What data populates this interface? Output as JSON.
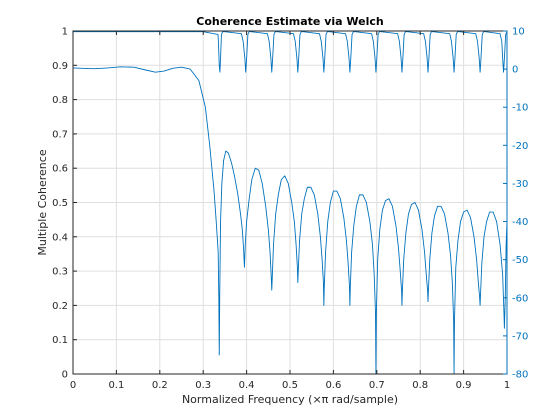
{
  "chart_data": {
    "type": "line",
    "title": "Coherence Estimate via Welch",
    "xlabel": "Normalized Frequency  (×π rad/sample)",
    "ylabel_left": "Multiple Coherence",
    "ylabel_right": "",
    "xlim": [
      0,
      1
    ],
    "ylim_left": [
      0,
      1
    ],
    "ylim_right": [
      -80,
      10
    ],
    "x_ticks": [
      "0",
      "0.1",
      "0.2",
      "0.3",
      "0.4",
      "0.5",
      "0.6",
      "0.7",
      "0.8",
      "0.9",
      "1"
    ],
    "y_ticks_left": [
      "0",
      "0.1",
      "0.2",
      "0.3",
      "0.4",
      "0.5",
      "0.6",
      "0.7",
      "0.8",
      "0.9",
      "1"
    ],
    "y_ticks_right": [
      "-80",
      "-70",
      "-60",
      "-50",
      "-40",
      "-30",
      "-20",
      "-10",
      "0",
      "10"
    ],
    "grid": true,
    "series": [
      {
        "axis": "left",
        "points": [
          [
            0,
            0.998
          ],
          [
            0.3,
            0.998
          ],
          [
            0.334,
            0.99
          ],
          [
            0.335,
            0.97
          ],
          [
            0.337,
            0.9
          ],
          [
            0.3385,
            0.88
          ],
          [
            0.34,
            0.92
          ],
          [
            0.342,
            0.99
          ],
          [
            0.345,
            0.998
          ],
          [
            0.35,
            0.998
          ],
          [
            0.388,
            0.992
          ],
          [
            0.392,
            0.97
          ],
          [
            0.396,
            0.92
          ],
          [
            0.398,
            0.88
          ],
          [
            0.4,
            0.92
          ],
          [
            0.403,
            0.99
          ],
          [
            0.406,
            0.998
          ],
          [
            0.41,
            0.998
          ],
          [
            0.448,
            0.992
          ],
          [
            0.452,
            0.97
          ],
          [
            0.456,
            0.92
          ],
          [
            0.458,
            0.88
          ],
          [
            0.46,
            0.92
          ],
          [
            0.463,
            0.99
          ],
          [
            0.466,
            0.998
          ],
          [
            0.47,
            0.998
          ],
          [
            0.508,
            0.992
          ],
          [
            0.512,
            0.97
          ],
          [
            0.516,
            0.92
          ],
          [
            0.518,
            0.88
          ],
          [
            0.52,
            0.92
          ],
          [
            0.523,
            0.99
          ],
          [
            0.526,
            0.998
          ],
          [
            0.53,
            0.998
          ],
          [
            0.568,
            0.992
          ],
          [
            0.572,
            0.97
          ],
          [
            0.576,
            0.92
          ],
          [
            0.578,
            0.88
          ],
          [
            0.58,
            0.92
          ],
          [
            0.583,
            0.99
          ],
          [
            0.586,
            0.998
          ],
          [
            0.59,
            0.998
          ],
          [
            0.628,
            0.992
          ],
          [
            0.632,
            0.97
          ],
          [
            0.636,
            0.92
          ],
          [
            0.638,
            0.88
          ],
          [
            0.64,
            0.92
          ],
          [
            0.643,
            0.99
          ],
          [
            0.646,
            0.998
          ],
          [
            0.65,
            0.998
          ],
          [
            0.688,
            0.992
          ],
          [
            0.692,
            0.97
          ],
          [
            0.696,
            0.92
          ],
          [
            0.698,
            0.88
          ],
          [
            0.7,
            0.92
          ],
          [
            0.703,
            0.99
          ],
          [
            0.706,
            0.998
          ],
          [
            0.71,
            0.998
          ],
          [
            0.748,
            0.992
          ],
          [
            0.752,
            0.97
          ],
          [
            0.756,
            0.92
          ],
          [
            0.758,
            0.88
          ],
          [
            0.76,
            0.92
          ],
          [
            0.763,
            0.99
          ],
          [
            0.766,
            0.998
          ],
          [
            0.77,
            0.998
          ],
          [
            0.808,
            0.992
          ],
          [
            0.812,
            0.97
          ],
          [
            0.816,
            0.92
          ],
          [
            0.818,
            0.88
          ],
          [
            0.82,
            0.92
          ],
          [
            0.823,
            0.99
          ],
          [
            0.826,
            0.998
          ],
          [
            0.83,
            0.998
          ],
          [
            0.868,
            0.992
          ],
          [
            0.872,
            0.97
          ],
          [
            0.876,
            0.92
          ],
          [
            0.878,
            0.88
          ],
          [
            0.88,
            0.92
          ],
          [
            0.883,
            0.99
          ],
          [
            0.886,
            0.998
          ],
          [
            0.89,
            0.998
          ],
          [
            0.928,
            0.992
          ],
          [
            0.932,
            0.97
          ],
          [
            0.936,
            0.92
          ],
          [
            0.938,
            0.88
          ],
          [
            0.94,
            0.92
          ],
          [
            0.943,
            0.99
          ],
          [
            0.946,
            0.998
          ],
          [
            0.95,
            0.998
          ],
          [
            0.984,
            0.992
          ],
          [
            0.988,
            0.97
          ],
          [
            0.99,
            0.92
          ],
          [
            0.992,
            0.88
          ],
          [
            0.994,
            0.92
          ],
          [
            0.997,
            0.99
          ],
          [
            1,
            0.998
          ]
        ]
      },
      {
        "axis": "right",
        "points": [
          [
            0,
            0.3
          ],
          [
            0.02,
            0.2
          ],
          [
            0.05,
            0.1
          ],
          [
            0.08,
            0.3
          ],
          [
            0.11,
            0.6
          ],
          [
            0.14,
            0.5
          ],
          [
            0.17,
            -0.3
          ],
          [
            0.19,
            -0.8
          ],
          [
            0.21,
            -0.5
          ],
          [
            0.23,
            0.2
          ],
          [
            0.25,
            0.5
          ],
          [
            0.27,
            0.0
          ],
          [
            0.29,
            -3
          ],
          [
            0.305,
            -10
          ],
          [
            0.315,
            -20
          ],
          [
            0.325,
            -32
          ],
          [
            0.33,
            -40
          ],
          [
            0.3345,
            -48
          ],
          [
            0.336,
            -60
          ],
          [
            0.337,
            -75
          ],
          [
            0.338,
            -60
          ],
          [
            0.34,
            -40
          ],
          [
            0.343,
            -30
          ],
          [
            0.347,
            -24
          ],
          [
            0.352,
            -21.5
          ],
          [
            0.358,
            -22
          ],
          [
            0.365,
            -24.5
          ],
          [
            0.372,
            -28
          ],
          [
            0.38,
            -33
          ],
          [
            0.386,
            -38
          ],
          [
            0.39,
            -42
          ],
          [
            0.393,
            -47
          ],
          [
            0.395,
            -52
          ],
          [
            0.397,
            -46
          ],
          [
            0.4,
            -40
          ],
          [
            0.406,
            -34
          ],
          [
            0.412,
            -29
          ],
          [
            0.42,
            -26
          ],
          [
            0.428,
            -26.5
          ],
          [
            0.436,
            -30
          ],
          [
            0.444,
            -36
          ],
          [
            0.45,
            -42
          ],
          [
            0.454,
            -48
          ],
          [
            0.457,
            -55
          ],
          [
            0.458,
            -58
          ],
          [
            0.459,
            -55
          ],
          [
            0.462,
            -46
          ],
          [
            0.467,
            -38
          ],
          [
            0.473,
            -33
          ],
          [
            0.48,
            -29
          ],
          [
            0.488,
            -28
          ],
          [
            0.496,
            -30
          ],
          [
            0.504,
            -35
          ],
          [
            0.51,
            -40
          ],
          [
            0.514,
            -46
          ],
          [
            0.517,
            -52
          ],
          [
            0.518,
            -56
          ],
          [
            0.519,
            -53
          ],
          [
            0.522,
            -45
          ],
          [
            0.527,
            -38
          ],
          [
            0.533,
            -34
          ],
          [
            0.54,
            -31
          ],
          [
            0.548,
            -31
          ],
          [
            0.556,
            -33
          ],
          [
            0.564,
            -38
          ],
          [
            0.57,
            -44
          ],
          [
            0.574,
            -50
          ],
          [
            0.577,
            -56
          ],
          [
            0.578,
            -62
          ],
          [
            0.579,
            -57
          ],
          [
            0.582,
            -48
          ],
          [
            0.587,
            -40
          ],
          [
            0.593,
            -35
          ],
          [
            0.6,
            -32
          ],
          [
            0.608,
            -32
          ],
          [
            0.616,
            -34
          ],
          [
            0.624,
            -39
          ],
          [
            0.63,
            -45
          ],
          [
            0.634,
            -51
          ],
          [
            0.637,
            -57
          ],
          [
            0.638,
            -62
          ],
          [
            0.639,
            -57
          ],
          [
            0.642,
            -48
          ],
          [
            0.647,
            -41
          ],
          [
            0.653,
            -36
          ],
          [
            0.66,
            -33
          ],
          [
            0.668,
            -33
          ],
          [
            0.676,
            -35
          ],
          [
            0.684,
            -40
          ],
          [
            0.69,
            -46
          ],
          [
            0.694,
            -54
          ],
          [
            0.697,
            -64
          ],
          [
            0.698,
            -80
          ],
          [
            0.699,
            -64
          ],
          [
            0.702,
            -50
          ],
          [
            0.707,
            -42
          ],
          [
            0.713,
            -37
          ],
          [
            0.72,
            -34.5
          ],
          [
            0.728,
            -34
          ],
          [
            0.736,
            -36
          ],
          [
            0.744,
            -41
          ],
          [
            0.75,
            -47
          ],
          [
            0.754,
            -53
          ],
          [
            0.757,
            -58
          ],
          [
            0.758,
            -62
          ],
          [
            0.759,
            -58
          ],
          [
            0.762,
            -50
          ],
          [
            0.767,
            -43
          ],
          [
            0.773,
            -38
          ],
          [
            0.78,
            -35.5
          ],
          [
            0.788,
            -35
          ],
          [
            0.796,
            -37
          ],
          [
            0.804,
            -42
          ],
          [
            0.81,
            -48
          ],
          [
            0.814,
            -54
          ],
          [
            0.817,
            -58
          ],
          [
            0.818,
            -61
          ],
          [
            0.819,
            -58
          ],
          [
            0.822,
            -50
          ],
          [
            0.827,
            -43
          ],
          [
            0.833,
            -38.5
          ],
          [
            0.84,
            -36
          ],
          [
            0.848,
            -36
          ],
          [
            0.856,
            -38
          ],
          [
            0.864,
            -43
          ],
          [
            0.87,
            -49
          ],
          [
            0.874,
            -56
          ],
          [
            0.877,
            -66
          ],
          [
            0.878,
            -80
          ],
          [
            0.879,
            -66
          ],
          [
            0.882,
            -52
          ],
          [
            0.887,
            -45
          ],
          [
            0.893,
            -40
          ],
          [
            0.9,
            -37.5
          ],
          [
            0.908,
            -37
          ],
          [
            0.916,
            -39
          ],
          [
            0.924,
            -44
          ],
          [
            0.93,
            -50
          ],
          [
            0.934,
            -56
          ],
          [
            0.937,
            -60
          ],
          [
            0.938,
            -62
          ],
          [
            0.939,
            -59
          ],
          [
            0.942,
            -51
          ],
          [
            0.947,
            -44
          ],
          [
            0.953,
            -40
          ],
          [
            0.96,
            -37.5
          ],
          [
            0.968,
            -37.5
          ],
          [
            0.976,
            -40
          ],
          [
            0.984,
            -46
          ],
          [
            0.99,
            -54
          ],
          [
            0.993,
            -64
          ],
          [
            0.994,
            -68
          ],
          [
            0.996,
            -60
          ],
          [
            0.998,
            -46
          ],
          [
            1,
            -40
          ]
        ]
      }
    ],
    "colors": {
      "line": "#0072bd",
      "axes": "#262626",
      "grid": "#dfdfdf"
    }
  }
}
